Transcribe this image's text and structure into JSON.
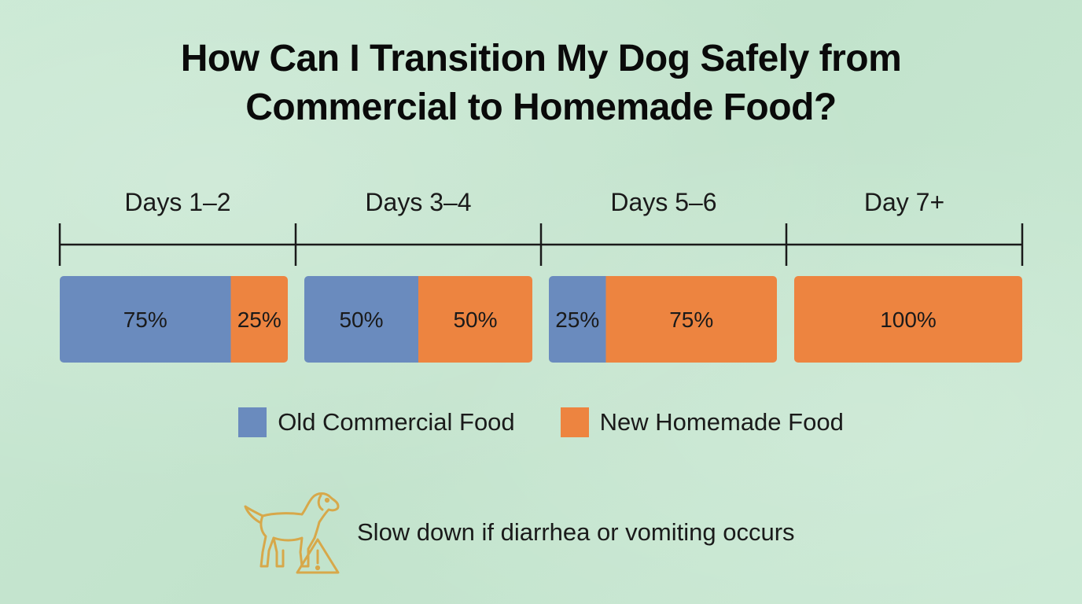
{
  "title_line1": "How Can I Transition My Dog Safely from",
  "title_line2": "Commercial to Homemade Food?",
  "colors": {
    "old": "#6a8bbe",
    "new": "#ed8440",
    "timeline": "#1a1a1a",
    "icon": "#d7a84a"
  },
  "chart_data": {
    "type": "bar",
    "orientation": "horizontal-stacked-100",
    "title": "How Can I Transition My Dog Safely from Commercial to Homemade Food?",
    "categories": [
      "Days 1–2",
      "Days 3–4",
      "Days 5–6",
      "Day 7+"
    ],
    "series": [
      {
        "name": "Old Commercial Food",
        "values": [
          75,
          50,
          25,
          0
        ],
        "labels": [
          "75%",
          "50%",
          "25%",
          ""
        ]
      },
      {
        "name": "New Homemade Food",
        "values": [
          25,
          50,
          75,
          100
        ],
        "labels": [
          "25%",
          "50%",
          "75%",
          "100%"
        ]
      }
    ],
    "unit": "%",
    "legend": "bottom-center"
  },
  "legend": {
    "old_label": "Old Commercial Food",
    "new_label": "New Homemade Food"
  },
  "warning": {
    "text": "Slow down if diarrhea or vomiting occurs",
    "icon": "dog-warning-icon"
  }
}
